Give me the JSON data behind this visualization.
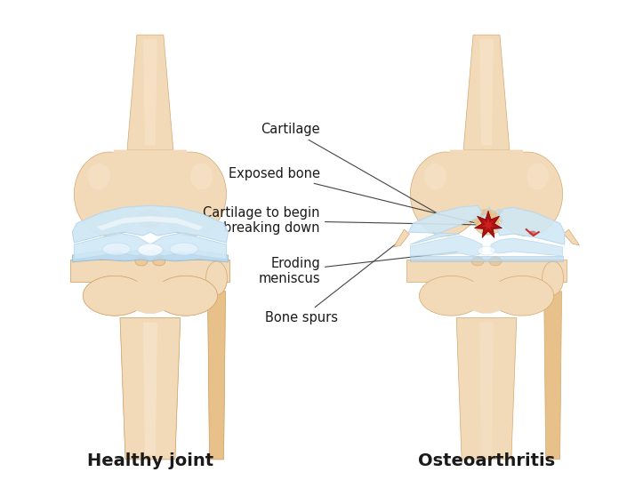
{
  "background_color": "#ffffff",
  "bone_color": "#f2d9b8",
  "bone_mid": "#ecc99a",
  "bone_dark": "#d4a870",
  "bone_shadow": "#e8c08a",
  "bone_highlight": "#f8e8d0",
  "cartilage_fill": "#d0e8f5",
  "cartilage_light": "#e8f4fc",
  "cartilage_dark": "#90b8d0",
  "cartilage_mid": "#b8d8ee",
  "meniscus_fill": "#a8cce0",
  "meniscus_dark": "#7090a8",
  "crack_red": "#aa1010",
  "crack_red2": "#cc2020",
  "label_color": "#1a1a1a",
  "label_fontsize": 10.5,
  "title_fontsize": 14,
  "title_healthy": "Healthy joint",
  "title_oa": "Osteoarthritis",
  "labels": {
    "cartilage": "Cartilage",
    "exposed_bone": "Exposed bone",
    "cartilage_breakdown": "Cartilage to begin\nbreaking down",
    "eroding_meniscus": "Eroding\nmeniscus",
    "bone_spurs": "Bone spurs"
  },
  "figsize": [
    6.96,
    5.58
  ],
  "dpi": 100
}
